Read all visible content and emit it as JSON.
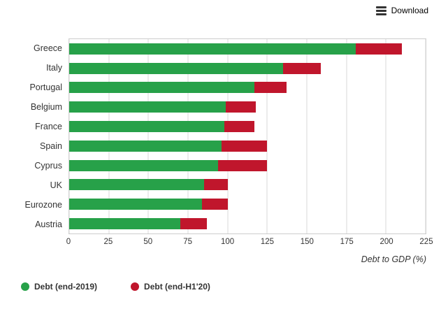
{
  "toolbar": {
    "download_label": "Download"
  },
  "colors": {
    "green": "#27a149",
    "red": "#c0162c",
    "grid": "#d9d9d9",
    "border": "#cccccc"
  },
  "chart_data": {
    "type": "bar",
    "orientation": "horizontal",
    "stacked": true,
    "title": "",
    "xlabel": "Debt to GDP (%)",
    "ylabel": "",
    "xlim": [
      0,
      225
    ],
    "ticks": [
      0,
      25,
      50,
      75,
      100,
      125,
      150,
      175,
      200,
      225
    ],
    "grid": true,
    "legend_position": "bottom-left",
    "categories": [
      "Greece",
      "Italy",
      "Portugal",
      "Belgium",
      "France",
      "Spain",
      "Cyprus",
      "UK",
      "Eurozone",
      "Austria"
    ],
    "series": [
      {
        "name": "Debt (end-2019)",
        "color": "#27a149",
        "values": [
          181,
          135,
          117,
          99,
          98,
          96,
          94,
          85,
          84,
          70
        ]
      },
      {
        "name": "Debt (end-H1'20)",
        "color": "#c0162c",
        "note": "bar end position; red segment = this value minus end-2019 value",
        "values": [
          210,
          159,
          137,
          118,
          117,
          125,
          125,
          100,
          100,
          87
        ]
      }
    ]
  },
  "legend": {
    "items": [
      {
        "label": "Debt (end-2019)",
        "color": "#27a149"
      },
      {
        "label": "Debt (end-H1'20)",
        "color": "#c0162c"
      }
    ]
  }
}
